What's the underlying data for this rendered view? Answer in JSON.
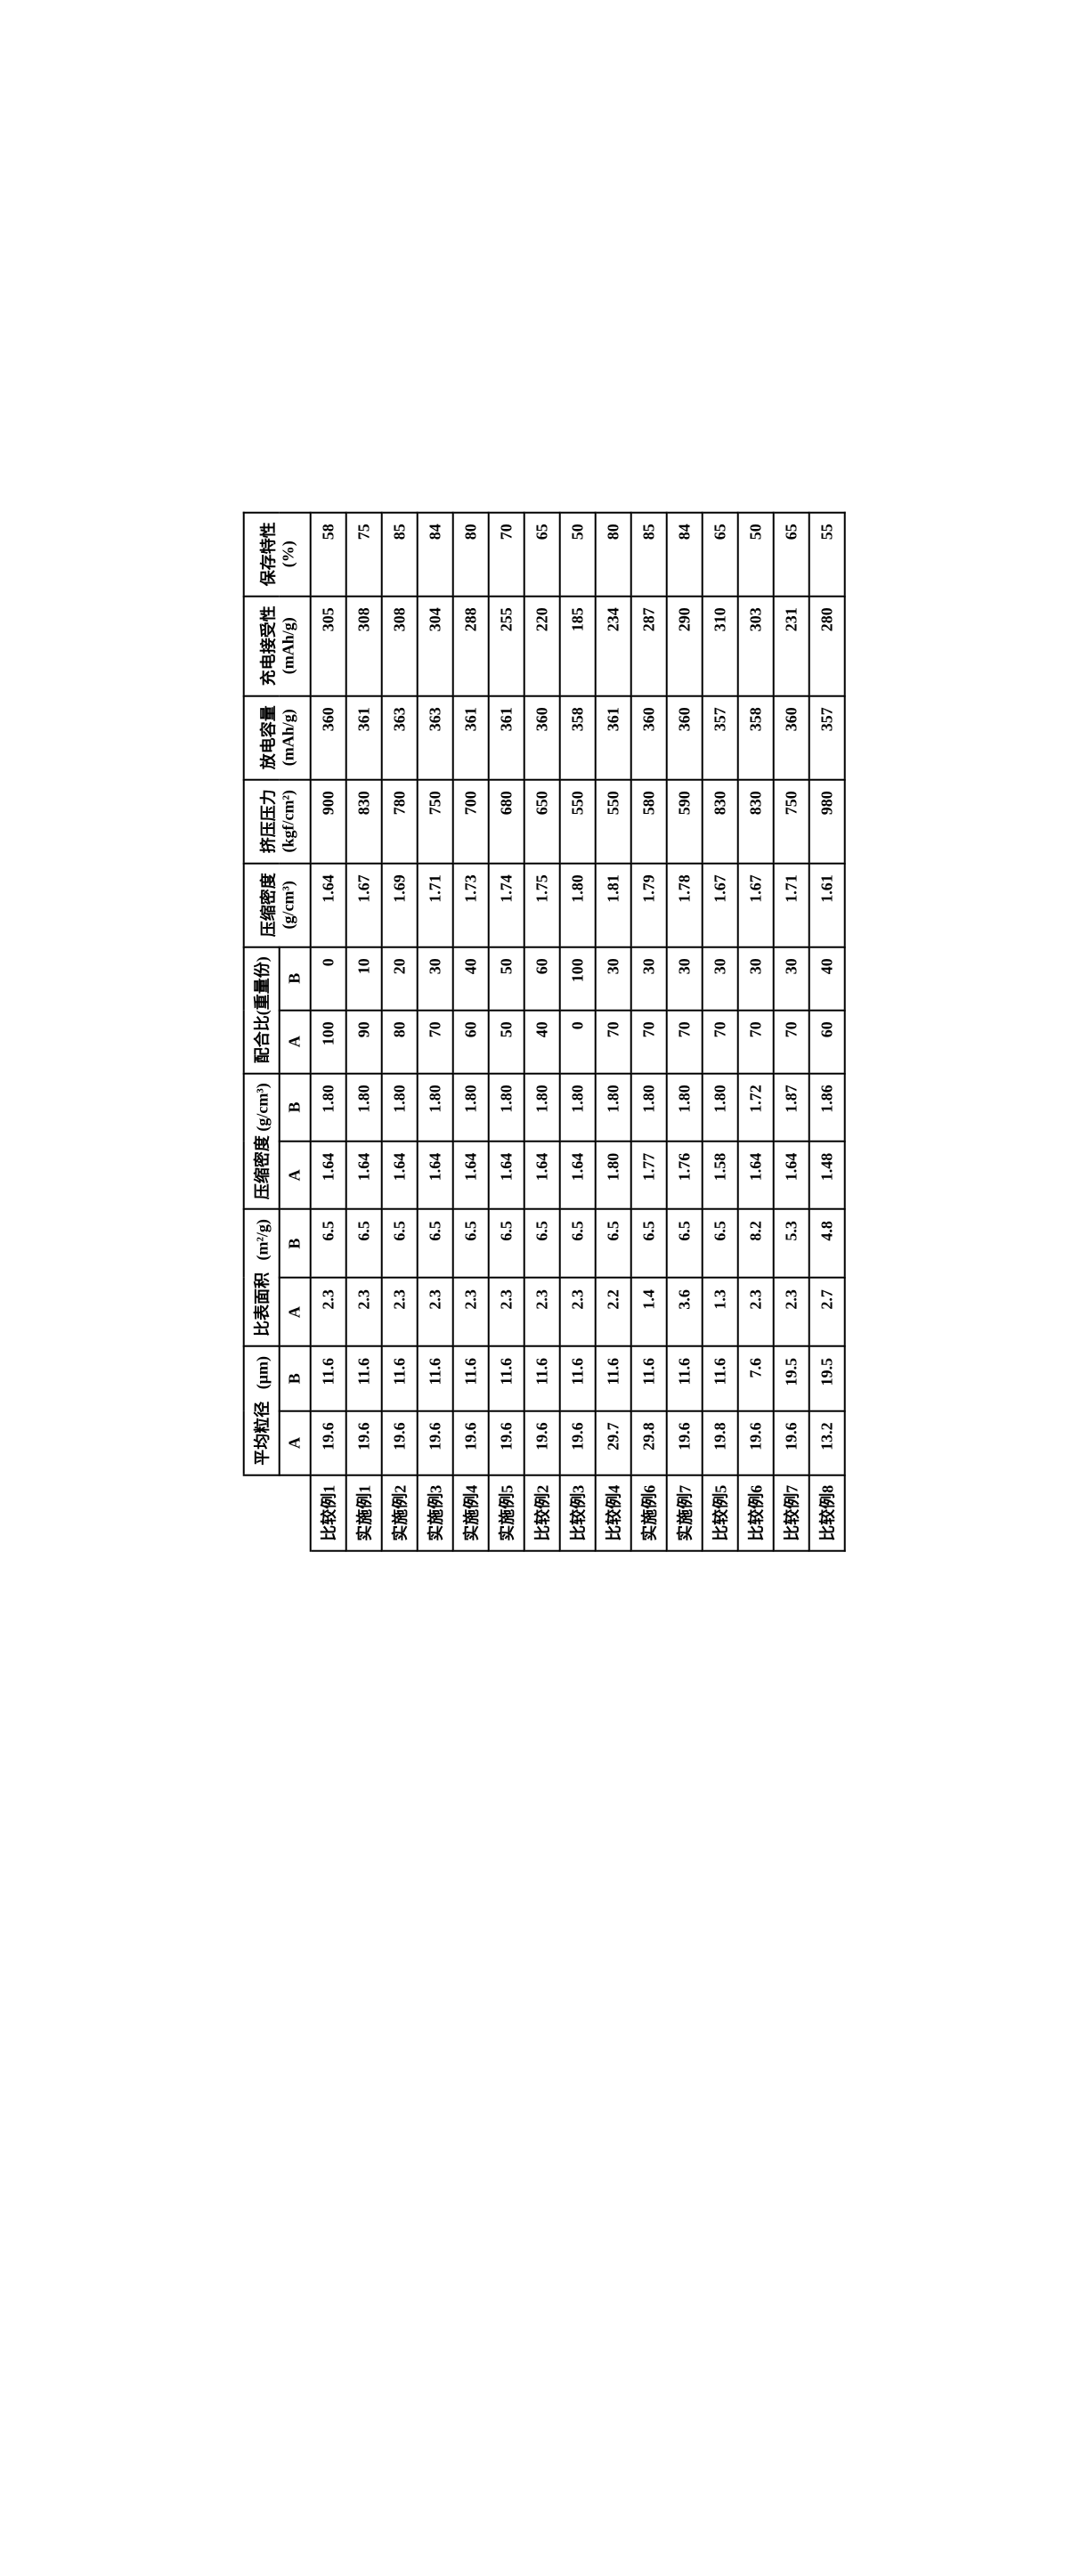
{
  "table": {
    "type": "table",
    "headers": {
      "group_avg_particle": "平均粒径",
      "group_avg_particle_unit": "(μm)",
      "group_surface_area": "比表面积",
      "group_surface_area_unit": "(m²/g)",
      "group_compress_density": "压缩密度 (g/cm³)",
      "group_mix_ratio": "配合比(重量份)",
      "col_compress_density": "压缩密度",
      "col_compress_density_unit": "(g/cm³)",
      "col_extrusion_pressure": "挤压压力",
      "col_extrusion_pressure_unit": "(kgf/cm²)",
      "col_discharge_capacity": "放电容量",
      "col_discharge_capacity_unit": "(mAh/g)",
      "col_charge_acceptance": "充电接受性",
      "col_charge_acceptance_unit": "(mAh/g)",
      "col_storage": "保存特性",
      "col_storage_unit": "(%)",
      "sub_A": "A",
      "sub_B": "B"
    },
    "rows": [
      {
        "label": "比较例1",
        "avg_A": "19.6",
        "avg_B": "11.6",
        "sa_A": "2.3",
        "sa_B": "6.5",
        "cd_A": "1.64",
        "cd_B": "1.80",
        "mix_A": "100",
        "mix_B": "0",
        "cd": "1.64",
        "ep": "900",
        "dc": "360",
        "ca": "305",
        "st": "58"
      },
      {
        "label": "实施例1",
        "avg_A": "19.6",
        "avg_B": "11.6",
        "sa_A": "2.3",
        "sa_B": "6.5",
        "cd_A": "1.64",
        "cd_B": "1.80",
        "mix_A": "90",
        "mix_B": "10",
        "cd": "1.67",
        "ep": "830",
        "dc": "361",
        "ca": "308",
        "st": "75"
      },
      {
        "label": "实施例2",
        "avg_A": "19.6",
        "avg_B": "11.6",
        "sa_A": "2.3",
        "sa_B": "6.5",
        "cd_A": "1.64",
        "cd_B": "1.80",
        "mix_A": "80",
        "mix_B": "20",
        "cd": "1.69",
        "ep": "780",
        "dc": "363",
        "ca": "308",
        "st": "85"
      },
      {
        "label": "实施例3",
        "avg_A": "19.6",
        "avg_B": "11.6",
        "sa_A": "2.3",
        "sa_B": "6.5",
        "cd_A": "1.64",
        "cd_B": "1.80",
        "mix_A": "70",
        "mix_B": "30",
        "cd": "1.71",
        "ep": "750",
        "dc": "363",
        "ca": "304",
        "st": "84"
      },
      {
        "label": "实施例4",
        "avg_A": "19.6",
        "avg_B": "11.6",
        "sa_A": "2.3",
        "sa_B": "6.5",
        "cd_A": "1.64",
        "cd_B": "1.80",
        "mix_A": "60",
        "mix_B": "40",
        "cd": "1.73",
        "ep": "700",
        "dc": "361",
        "ca": "288",
        "st": "80"
      },
      {
        "label": "实施例5",
        "avg_A": "19.6",
        "avg_B": "11.6",
        "sa_A": "2.3",
        "sa_B": "6.5",
        "cd_A": "1.64",
        "cd_B": "1.80",
        "mix_A": "50",
        "mix_B": "50",
        "cd": "1.74",
        "ep": "680",
        "dc": "361",
        "ca": "255",
        "st": "70"
      },
      {
        "label": "比较例2",
        "avg_A": "19.6",
        "avg_B": "11.6",
        "sa_A": "2.3",
        "sa_B": "6.5",
        "cd_A": "1.64",
        "cd_B": "1.80",
        "mix_A": "40",
        "mix_B": "60",
        "cd": "1.75",
        "ep": "650",
        "dc": "360",
        "ca": "220",
        "st": "65"
      },
      {
        "label": "比较例3",
        "avg_A": "19.6",
        "avg_B": "11.6",
        "sa_A": "2.3",
        "sa_B": "6.5",
        "cd_A": "1.64",
        "cd_B": "1.80",
        "mix_A": "0",
        "mix_B": "100",
        "cd": "1.80",
        "ep": "550",
        "dc": "358",
        "ca": "185",
        "st": "50"
      },
      {
        "label": "比较例4",
        "avg_A": "29.7",
        "avg_B": "11.6",
        "sa_A": "2.2",
        "sa_B": "6.5",
        "cd_A": "1.80",
        "cd_B": "1.80",
        "mix_A": "70",
        "mix_B": "30",
        "cd": "1.81",
        "ep": "550",
        "dc": "361",
        "ca": "234",
        "st": "80"
      },
      {
        "label": "实施例6",
        "avg_A": "29.8",
        "avg_B": "11.6",
        "sa_A": "1.4",
        "sa_B": "6.5",
        "cd_A": "1.77",
        "cd_B": "1.80",
        "mix_A": "70",
        "mix_B": "30",
        "cd": "1.79",
        "ep": "580",
        "dc": "360",
        "ca": "287",
        "st": "85"
      },
      {
        "label": "实施例7",
        "avg_A": "19.6",
        "avg_B": "11.6",
        "sa_A": "3.6",
        "sa_B": "6.5",
        "cd_A": "1.76",
        "cd_B": "1.80",
        "mix_A": "70",
        "mix_B": "30",
        "cd": "1.78",
        "ep": "590",
        "dc": "360",
        "ca": "290",
        "st": "84"
      },
      {
        "label": "比较例5",
        "avg_A": "19.8",
        "avg_B": "11.6",
        "sa_A": "1.3",
        "sa_B": "6.5",
        "cd_A": "1.58",
        "cd_B": "1.80",
        "mix_A": "70",
        "mix_B": "30",
        "cd": "1.67",
        "ep": "830",
        "dc": "357",
        "ca": "310",
        "st": "65"
      },
      {
        "label": "比较例6",
        "avg_A": "19.6",
        "avg_B": "7.6",
        "sa_A": "2.3",
        "sa_B": "8.2",
        "cd_A": "1.64",
        "cd_B": "1.72",
        "mix_A": "70",
        "mix_B": "30",
        "cd": "1.67",
        "ep": "830",
        "dc": "358",
        "ca": "303",
        "st": "50"
      },
      {
        "label": "比较例7",
        "avg_A": "19.6",
        "avg_B": "19.5",
        "sa_A": "2.3",
        "sa_B": "5.3",
        "cd_A": "1.64",
        "cd_B": "1.87",
        "mix_A": "70",
        "mix_B": "30",
        "cd": "1.71",
        "ep": "750",
        "dc": "360",
        "ca": "231",
        "st": "65"
      },
      {
        "label": "比较例8",
        "avg_A": "13.2",
        "avg_B": "19.5",
        "sa_A": "2.7",
        "sa_B": "4.8",
        "cd_A": "1.48",
        "cd_B": "1.86",
        "mix_A": "60",
        "mix_B": "40",
        "cd": "1.61",
        "ep": "980",
        "dc": "357",
        "ca": "280",
        "st": "55"
      }
    ],
    "styling": {
      "border_color": "#000000",
      "border_width": 2,
      "background_color": "#ffffff",
      "text_color": "#000000",
      "font_family": "SimSun, serif",
      "font_size": 18,
      "font_weight": "bold",
      "rotation_deg": -90
    }
  }
}
